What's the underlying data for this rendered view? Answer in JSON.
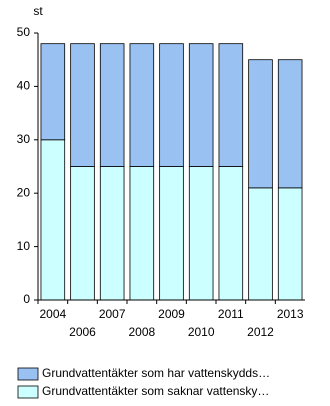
{
  "chart_data": {
    "type": "stacked_bar",
    "ylabel": "st",
    "categories": [
      "2004",
      "2006",
      "2007",
      "2008",
      "2009",
      "2010",
      "2011",
      "2012",
      "2013"
    ],
    "series": [
      {
        "name": "Grundvattentäkter som saknar vattensky…",
        "color": "#ccffff",
        "values": [
          30,
          25,
          25,
          25,
          25,
          25,
          25,
          21,
          21
        ]
      },
      {
        "name": "Grundvattentäkter som har vattenskydds…",
        "color": "#99c2f2",
        "values": [
          18,
          23,
          23,
          23,
          23,
          23,
          23,
          24,
          24
        ]
      }
    ],
    "ylim": [
      0,
      50
    ],
    "yticks": [
      0,
      10,
      20,
      30,
      40,
      50
    ]
  }
}
